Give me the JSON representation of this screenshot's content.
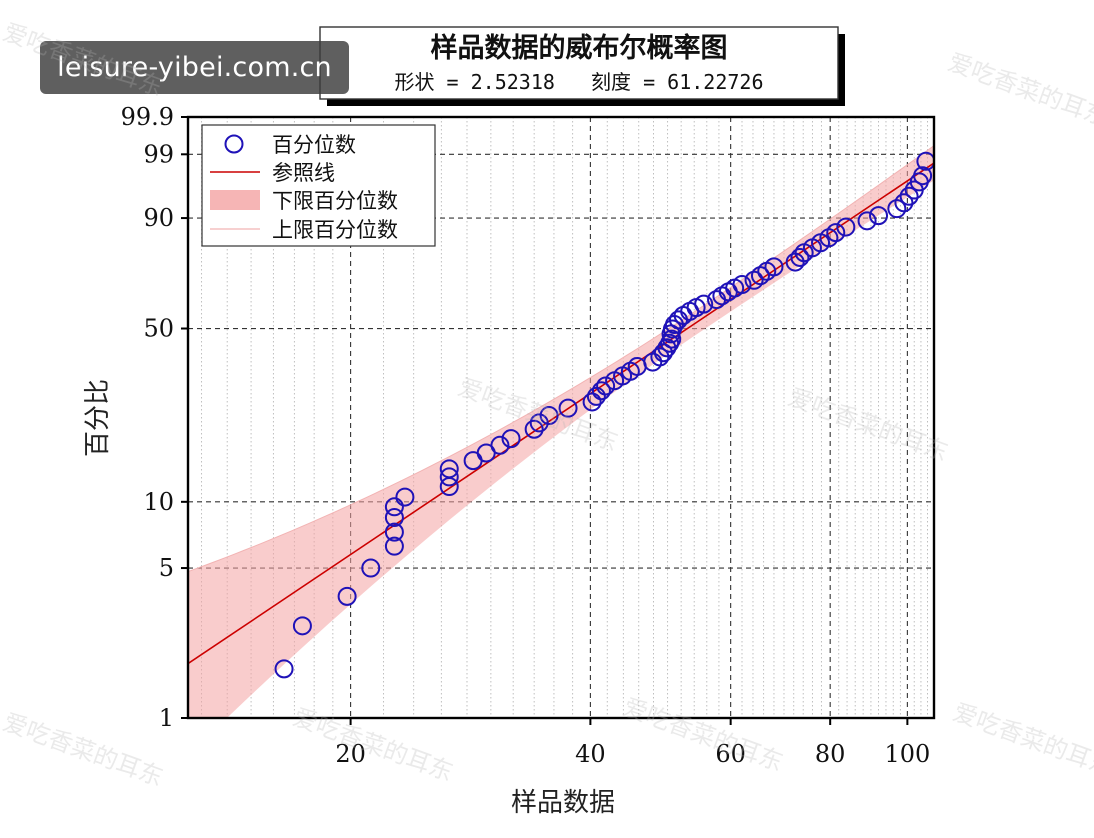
{
  "badge": {
    "text": "leisure-yibei.com.cn"
  },
  "watermarks": [
    "爱吃香菜的耳东",
    "爱吃香菜的耳东",
    "爱吃香菜的耳东",
    "爱吃香菜的耳东",
    "爱吃香菜的耳东",
    "爱吃香菜的耳东",
    "爱吃香菜的耳东",
    "爱吃香菜的耳东"
  ],
  "chart_data": {
    "type": "scatter",
    "title": "样品数据的威布尔概率图",
    "subtitle": "形状 = 2.52318   刻度 = 61.22726",
    "xlabel": "样品数据",
    "ylabel": "百分比",
    "x_scale": "log",
    "y_scale": "weibull-probability",
    "xlim": [
      12.5,
      108
    ],
    "ylim_percent": [
      1,
      99.9
    ],
    "x_ticks": [
      20,
      40,
      60,
      80,
      100
    ],
    "x_tick_labels": [
      "20",
      "40",
      "60",
      "80",
      "100"
    ],
    "y_ticks": [
      1,
      5,
      10,
      50,
      90,
      99,
      99.9
    ],
    "y_tick_labels": [
      "1",
      "5",
      "10",
      "50",
      "90",
      "99",
      "99.9"
    ],
    "grid": true,
    "legend_position": "top-left",
    "legend": [
      {
        "label": "百分位数",
        "kind": "marker"
      },
      {
        "label": "参照线",
        "kind": "line"
      },
      {
        "label": "下限百分位数",
        "kind": "band"
      },
      {
        "label": "上限百分位数",
        "kind": "thin-line"
      }
    ],
    "colors": {
      "marker": "#1f12b8",
      "line": "#cc0000",
      "band": "#f4a3a3"
    },
    "shape": 2.52318,
    "scale": 61.22726,
    "series": [
      {
        "name": "百分位数",
        "points": [
          [
            16.5,
            1.7
          ],
          [
            17.4,
            2.7
          ],
          [
            19.8,
            3.7
          ],
          [
            21.2,
            5.0
          ],
          [
            22.7,
            6.3
          ],
          [
            22.7,
            7.3
          ],
          [
            22.7,
            8.5
          ],
          [
            22.7,
            9.5
          ],
          [
            23.4,
            10.5
          ],
          [
            26.6,
            11.7
          ],
          [
            26.6,
            12.9
          ],
          [
            26.6,
            14.0
          ],
          [
            28.5,
            15.2
          ],
          [
            29.6,
            16.4
          ],
          [
            30.8,
            17.7
          ],
          [
            31.8,
            18.9
          ],
          [
            34.0,
            20.7
          ],
          [
            34.5,
            22.0
          ],
          [
            35.5,
            23.6
          ],
          [
            37.5,
            25.3
          ],
          [
            40.2,
            26.8
          ],
          [
            40.7,
            28.2
          ],
          [
            41.3,
            29.7
          ],
          [
            41.8,
            31.0
          ],
          [
            42.9,
            32.5
          ],
          [
            43.9,
            33.9
          ],
          [
            44.9,
            35.3
          ],
          [
            45.8,
            36.8
          ],
          [
            47.9,
            38.2
          ],
          [
            48.9,
            39.9
          ],
          [
            49.4,
            41.3
          ],
          [
            49.9,
            43.0
          ],
          [
            50.3,
            44.6
          ],
          [
            50.6,
            46.1
          ],
          [
            50.5,
            48.0
          ],
          [
            50.7,
            49.8
          ],
          [
            51.0,
            51.5
          ],
          [
            51.6,
            53.3
          ],
          [
            52.3,
            55.0
          ],
          [
            53.3,
            56.6
          ],
          [
            54.3,
            58.1
          ],
          [
            55.5,
            59.5
          ],
          [
            57.6,
            61.3
          ],
          [
            58.5,
            62.8
          ],
          [
            59.6,
            64.4
          ],
          [
            60.7,
            65.9
          ],
          [
            62.0,
            67.3
          ],
          [
            64.2,
            69.0
          ],
          [
            65.4,
            70.8
          ],
          [
            66.6,
            72.5
          ],
          [
            68.0,
            74.2
          ],
          [
            72.3,
            76.0
          ],
          [
            73.3,
            77.7
          ],
          [
            74.2,
            79.4
          ],
          [
            76.0,
            81.1
          ],
          [
            77.8,
            82.8
          ],
          [
            79.7,
            84.4
          ],
          [
            81.3,
            86.0
          ],
          [
            83.7,
            87.6
          ],
          [
            89.0,
            89.3
          ],
          [
            92.0,
            90.6
          ],
          [
            97.0,
            92.2
          ],
          [
            99.0,
            93.4
          ],
          [
            100.5,
            94.6
          ],
          [
            102.0,
            95.6
          ],
          [
            103.5,
            96.7
          ],
          [
            104.5,
            97.4
          ],
          [
            105.5,
            98.6
          ]
        ]
      }
    ]
  }
}
